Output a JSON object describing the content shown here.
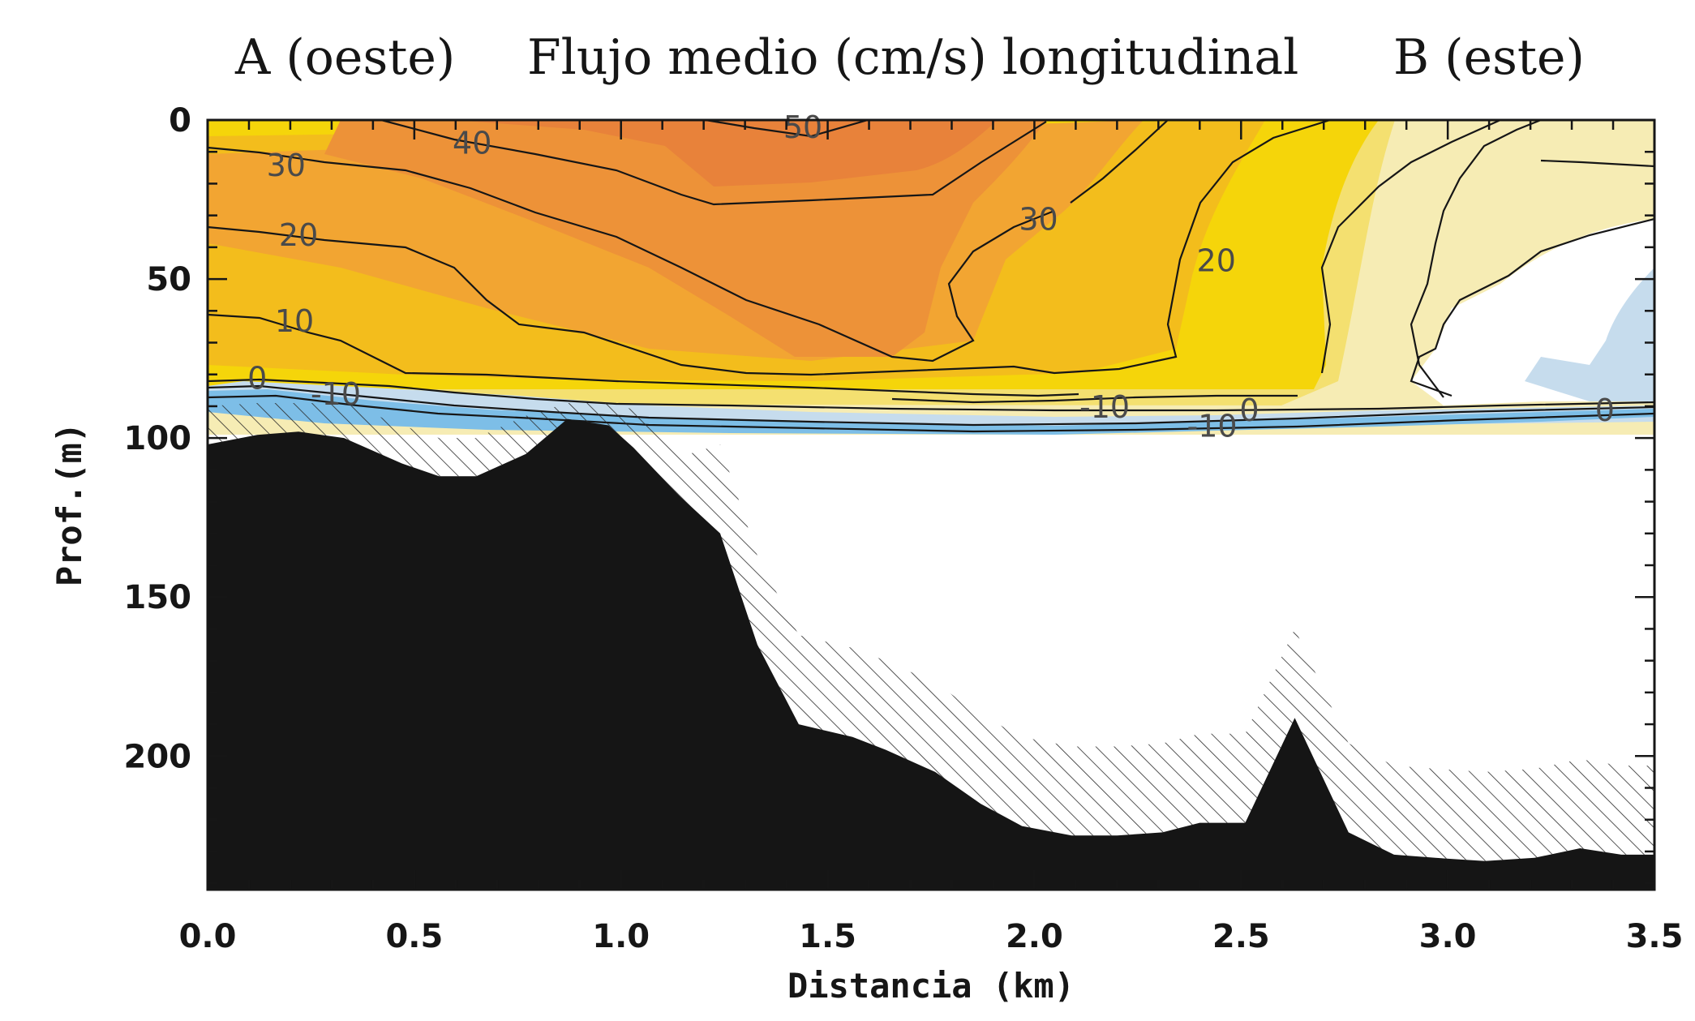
{
  "chart_data": {
    "type": "contour",
    "title": "Flujo medio (cm/s) longitudinal",
    "left_label": "A (oeste)",
    "right_label": "B (este)",
    "xlabel": "Distancia (km)",
    "ylabel": "Prof.(m)",
    "xlim": [
      0.0,
      3.5
    ],
    "ylim": [
      0,
      242
    ],
    "y_inverted": true,
    "xticks": [
      "0.0",
      "0.5",
      "1.0",
      "1.5",
      "2.0",
      "2.5",
      "3.0",
      "3.5"
    ],
    "yticks": [
      "0",
      "50",
      "100",
      "150",
      "200"
    ],
    "fill_levels": [
      {
        "level": 50,
        "color": "#e8823a"
      },
      {
        "level": 40,
        "color": "#ed9238"
      },
      {
        "level": 30,
        "color": "#f2a532"
      },
      {
        "level": 20,
        "color": "#f3bd1c"
      },
      {
        "level": 10,
        "color": "#f5d50a"
      },
      {
        "level": 5,
        "color": "#f4e070"
      },
      {
        "level": 0,
        "color": "#f6ecb4"
      },
      {
        "level": -5,
        "color": "#ffffff"
      },
      {
        "level": -10,
        "color": "#c6dced"
      },
      {
        "level": -20,
        "color": "#7dbee7"
      }
    ],
    "contour_labels": [
      {
        "text": "50",
        "x": 1.44,
        "y": 2
      },
      {
        "text": "40",
        "x": 0.64,
        "y": 7
      },
      {
        "text": "30",
        "x": 0.19,
        "y": 14
      },
      {
        "text": "30",
        "x": 2.01,
        "y": 31
      },
      {
        "text": "20",
        "x": 0.22,
        "y": 36
      },
      {
        "text": "20",
        "x": 2.44,
        "y": 44
      },
      {
        "text": "10",
        "x": 0.21,
        "y": 63
      },
      {
        "text": "0",
        "x": 0.12,
        "y": 81
      },
      {
        "text": "-10",
        "x": 0.31,
        "y": 86
      },
      {
        "text": "-10",
        "x": 2.17,
        "y": 90
      },
      {
        "text": "-10",
        "x": 2.43,
        "y": 96
      },
      {
        "text": "0",
        "x": 2.52,
        "y": 91
      },
      {
        "text": "0",
        "x": 3.38,
        "y": 91
      }
    ],
    "bathymetry": {
      "x": [
        0.0,
        0.12,
        0.22,
        0.33,
        0.47,
        0.56,
        0.65,
        0.77,
        0.87,
        0.97,
        1.03,
        1.14,
        1.24,
        1.33,
        1.43,
        1.56,
        1.64,
        1.76,
        1.87,
        1.97,
        2.09,
        2.2,
        2.31,
        2.4,
        2.51,
        2.63,
        2.76,
        2.87,
        2.97,
        3.09,
        3.21,
        3.32,
        3.42,
        3.5
      ],
      "depth": [
        102,
        99,
        98,
        100,
        108,
        112,
        112,
        105,
        94,
        96,
        103,
        118,
        130,
        165,
        190,
        194,
        198,
        205,
        215,
        222,
        225,
        225,
        224,
        221,
        221,
        188,
        224,
        231,
        232,
        233,
        232,
        229,
        231,
        231
      ]
    }
  }
}
